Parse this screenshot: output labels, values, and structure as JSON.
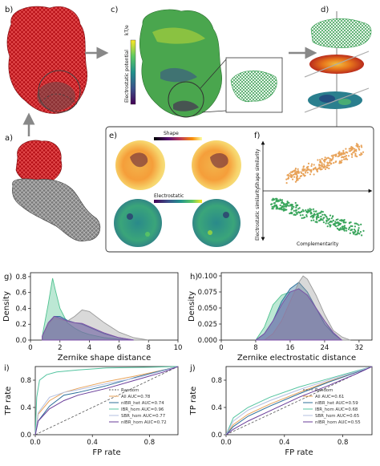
{
  "panels": {
    "a": "a)",
    "b": "b)",
    "c": "c)",
    "d": "d)",
    "e": "e)",
    "f": "f)",
    "g": "g)",
    "h": "h)",
    "i": "i)",
    "j": "j)"
  },
  "panel_c": {
    "colorbar_label": "Electrostatic potential",
    "colorbar_unit": "kT/e"
  },
  "panel_e": {
    "shape_title": "Shape",
    "electrostatic_title": "Electrostatic"
  },
  "panel_f": {
    "ylabel_top": "Shape similarity",
    "ylabel_bottom": "Electrostatic similarity",
    "xlabel": "Complementarity"
  },
  "colors": {
    "protein_red": "#c4161c",
    "protein_grey": "#8a8a8a",
    "all": "#e8a35a",
    "nibr_het": "#2e6f9a",
    "ibr_hom": "#54c4a0",
    "sbr_hom": "#b3bfe0",
    "nibr_hom": "#6a3d9a",
    "random": "#555555"
  },
  "chart_data": [
    {
      "type": "area",
      "panel": "g",
      "xlabel": "Zernike shape distance",
      "ylabel": "Density",
      "xlim": [
        0,
        10
      ],
      "ylim": [
        0,
        0.85
      ],
      "xticks": [
        "0",
        "2",
        "4",
        "6",
        "8",
        "10"
      ],
      "yticks": [
        "0.0",
        "0.2",
        "0.4",
        "0.6",
        "0.8"
      ],
      "series": [
        {
          "x": [
            0.8,
            1.2,
            1.5,
            1.7,
            2.0,
            2.5,
            3.0,
            3.5,
            4.0,
            5.0,
            6.0,
            7.0
          ],
          "values": [
            0.05,
            0.45,
            0.78,
            0.62,
            0.4,
            0.22,
            0.15,
            0.1,
            0.07,
            0.03,
            0.01,
            0.0
          ]
        },
        {
          "x": [
            0.8,
            1.2,
            1.6,
            2.0,
            2.5,
            3.0,
            3.5,
            4.0,
            5.0,
            6.0,
            7.0
          ],
          "values": [
            0.05,
            0.2,
            0.3,
            0.3,
            0.25,
            0.22,
            0.2,
            0.16,
            0.08,
            0.03,
            0.0
          ]
        },
        {
          "x": [
            0.8,
            1.2,
            1.6,
            2.0,
            2.5,
            3.0,
            3.5,
            4.0,
            5.0,
            6.0,
            7.0,
            8.0
          ],
          "values": [
            0.05,
            0.2,
            0.28,
            0.26,
            0.24,
            0.3,
            0.38,
            0.36,
            0.22,
            0.1,
            0.03,
            0.0
          ]
        },
        {
          "x": [
            0.8,
            1.2,
            1.6,
            2.0,
            2.5,
            3.0,
            3.5,
            4.0,
            5.0,
            6.0,
            7.0
          ],
          "values": [
            0.05,
            0.22,
            0.3,
            0.28,
            0.24,
            0.22,
            0.21,
            0.17,
            0.09,
            0.03,
            0.0
          ]
        }
      ]
    },
    {
      "type": "area",
      "panel": "h",
      "xlabel": "Zernike electrostatic distance",
      "ylabel": "Density",
      "xlim": [
        0,
        35
      ],
      "ylim": [
        0,
        0.105
      ],
      "xticks": [
        "0",
        "8",
        "16",
        "24",
        "32"
      ],
      "yticks": [
        "0.000",
        "0.025",
        "0.050",
        "0.075",
        "0.100"
      ],
      "series": [
        {
          "x": [
            8,
            10,
            12,
            14,
            16,
            18,
            20,
            22,
            24,
            26,
            28
          ],
          "values": [
            0.0,
            0.02,
            0.055,
            0.07,
            0.075,
            0.08,
            0.07,
            0.05,
            0.03,
            0.01,
            0.0
          ]
        },
        {
          "x": [
            8,
            10,
            12,
            14,
            16,
            18,
            20,
            22,
            24,
            26,
            28
          ],
          "values": [
            0.0,
            0.01,
            0.03,
            0.06,
            0.08,
            0.09,
            0.075,
            0.05,
            0.025,
            0.01,
            0.0
          ]
        },
        {
          "x": [
            10,
            12,
            14,
            16,
            18,
            19,
            20,
            22,
            24,
            26,
            28,
            30
          ],
          "values": [
            0.0,
            0.01,
            0.03,
            0.06,
            0.09,
            0.1,
            0.095,
            0.07,
            0.04,
            0.015,
            0.005,
            0.0
          ]
        },
        {
          "x": [
            8,
            10,
            12,
            14,
            16,
            18,
            20,
            22,
            24,
            26,
            28
          ],
          "values": [
            0.0,
            0.01,
            0.03,
            0.055,
            0.075,
            0.08,
            0.07,
            0.05,
            0.03,
            0.012,
            0.0
          ]
        }
      ]
    },
    {
      "type": "line",
      "panel": "i",
      "xlabel": "FP rate",
      "ylabel": "TP rate",
      "xlim": [
        0,
        1
      ],
      "ylim": [
        0,
        1
      ],
      "xticks": [
        "0.0",
        "0.4",
        "0.8"
      ],
      "yticks": [
        "0.0",
        "0.4",
        "0.8"
      ],
      "series": [
        {
          "name": "Random",
          "x": [
            0,
            1
          ],
          "values": [
            0,
            1
          ]
        },
        {
          "name": "All AUC=0.78",
          "x": [
            0,
            0.02,
            0.1,
            0.2,
            0.3,
            0.5,
            0.7,
            0.9,
            1
          ],
          "values": [
            0,
            0.3,
            0.5,
            0.62,
            0.68,
            0.78,
            0.86,
            0.95,
            1
          ]
        },
        {
          "name": "nIBR_het AUC=0.74",
          "x": [
            0,
            0.02,
            0.1,
            0.2,
            0.3,
            0.5,
            0.7,
            0.9,
            1
          ],
          "values": [
            0,
            0.2,
            0.42,
            0.58,
            0.62,
            0.72,
            0.84,
            0.95,
            1
          ]
        },
        {
          "name": "IBR_hom AUC=0.96",
          "x": [
            0,
            0.01,
            0.03,
            0.08,
            0.15,
            0.3,
            0.5,
            0.8,
            1
          ],
          "values": [
            0,
            0.55,
            0.8,
            0.88,
            0.92,
            0.95,
            0.98,
            0.99,
            1
          ]
        },
        {
          "name": "SBR_hom AUC=0.77",
          "x": [
            0,
            0.02,
            0.1,
            0.2,
            0.3,
            0.5,
            0.7,
            0.9,
            1
          ],
          "values": [
            0,
            0.32,
            0.55,
            0.62,
            0.66,
            0.75,
            0.83,
            0.94,
            1
          ]
        },
        {
          "name": "nIBR_hom AUC=0.72",
          "x": [
            0,
            0.02,
            0.1,
            0.2,
            0.3,
            0.5,
            0.7,
            0.9,
            1
          ],
          "values": [
            0,
            0.2,
            0.38,
            0.5,
            0.58,
            0.68,
            0.8,
            0.92,
            1
          ]
        }
      ]
    },
    {
      "type": "line",
      "panel": "j",
      "xlabel": "FP rate",
      "ylabel": "TP rate",
      "xlim": [
        0,
        1
      ],
      "ylim": [
        0,
        1
      ],
      "xticks": [
        "0.0",
        "0.4",
        "0.8"
      ],
      "yticks": [
        "0.0",
        "0.4",
        "0.8"
      ],
      "series": [
        {
          "name": "Random",
          "x": [
            0,
            1
          ],
          "values": [
            0,
            1
          ]
        },
        {
          "name": "All AUC=0.61",
          "x": [
            0,
            0.05,
            0.15,
            0.3,
            0.5,
            0.7,
            0.9,
            1
          ],
          "values": [
            0,
            0.15,
            0.3,
            0.45,
            0.62,
            0.78,
            0.92,
            1
          ]
        },
        {
          "name": "nIBR_het AUC=0.59",
          "x": [
            0,
            0.05,
            0.15,
            0.3,
            0.5,
            0.7,
            0.9,
            1
          ],
          "values": [
            0,
            0.12,
            0.27,
            0.42,
            0.6,
            0.77,
            0.92,
            1
          ]
        },
        {
          "name": "IBR_hom AUC=0.68",
          "x": [
            0,
            0.05,
            0.15,
            0.3,
            0.5,
            0.7,
            0.9,
            1
          ],
          "values": [
            0,
            0.25,
            0.4,
            0.55,
            0.7,
            0.82,
            0.94,
            1
          ]
        },
        {
          "name": "SBR_hom AUC=0.65",
          "x": [
            0,
            0.05,
            0.15,
            0.3,
            0.5,
            0.7,
            0.9,
            1
          ],
          "values": [
            0,
            0.2,
            0.36,
            0.5,
            0.66,
            0.8,
            0.93,
            1
          ]
        },
        {
          "name": "nIBR_hom AUC=0.55",
          "x": [
            0,
            0.05,
            0.15,
            0.3,
            0.5,
            0.7,
            0.9,
            1
          ],
          "values": [
            0,
            0.08,
            0.2,
            0.35,
            0.55,
            0.72,
            0.9,
            1
          ]
        }
      ]
    }
  ]
}
